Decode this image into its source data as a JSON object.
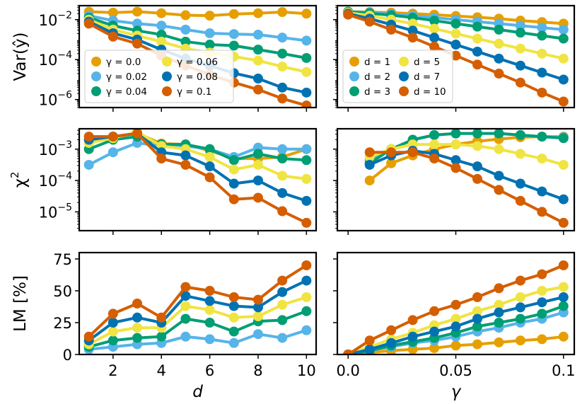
{
  "colors": {
    "c0": "#E69F00",
    "c1": "#56B4E9",
    "c2": "#009E73",
    "c3": "#F0E442",
    "c4": "#0072B2",
    "c5": "#D55E00"
  },
  "chart_data": [
    {
      "id": "var_d",
      "type": "line",
      "yscale": "log",
      "ylabel": "Var(ŷ)",
      "xlim": [
        0.6,
        10.4
      ],
      "ylim_log10": [
        -6.4,
        -1.3
      ],
      "y_ticks": [
        {
          "v": -2,
          "label": "10",
          "exp": "−2"
        },
        {
          "v": -4,
          "label": "10",
          "exp": "−4"
        },
        {
          "v": -6,
          "label": "10",
          "exp": "−6"
        }
      ],
      "x": [
        1,
        2,
        3,
        4,
        5,
        6,
        7,
        8,
        9,
        10
      ],
      "series": [
        {
          "name": "γ = 0.0",
          "values": [
            -1.6,
            -1.65,
            -1.6,
            -1.68,
            -1.78,
            -1.8,
            -1.72,
            -1.68,
            -1.62,
            -1.7
          ]
        },
        {
          "name": "γ = 0.02",
          "values": [
            -1.8,
            -2.05,
            -2.2,
            -2.3,
            -2.5,
            -2.68,
            -2.72,
            -2.75,
            -2.9,
            -3.05
          ]
        },
        {
          "name": "γ = 0.04",
          "values": [
            -1.9,
            -2.3,
            -2.55,
            -2.75,
            -3.1,
            -3.25,
            -3.3,
            -3.5,
            -3.7,
            -3.92
          ]
        },
        {
          "name": "γ = 0.06",
          "values": [
            -2.0,
            -2.5,
            -2.8,
            -3.1,
            -3.45,
            -3.65,
            -3.85,
            -4.05,
            -4.35,
            -4.62
          ]
        },
        {
          "name": "γ = 0.08",
          "values": [
            -2.1,
            -2.68,
            -3.0,
            -3.5,
            -3.95,
            -4.3,
            -4.68,
            -4.95,
            -5.4,
            -5.65
          ]
        },
        {
          "name": "γ = 0.1",
          "values": [
            -2.2,
            -2.85,
            -3.2,
            -3.8,
            -4.3,
            -4.75,
            -5.15,
            -5.5,
            -5.95,
            -6.3
          ]
        }
      ],
      "legend": {
        "placement": "lower-left",
        "columns": 2
      }
    },
    {
      "id": "var_g",
      "type": "line",
      "yscale": "log",
      "xlim": [
        -0.005,
        0.105
      ],
      "ylim_log10": [
        -6.4,
        -1.3
      ],
      "x": [
        0,
        0.01,
        0.02,
        0.03,
        0.04,
        0.05,
        0.06,
        0.07,
        0.08,
        0.09,
        0.1
      ],
      "series": [
        {
          "name": "d = 1",
          "values": [
            -1.6,
            -1.62,
            -1.65,
            -1.7,
            -1.75,
            -1.82,
            -1.88,
            -1.95,
            -2.05,
            -2.12,
            -2.2
          ]
        },
        {
          "name": "d = 2",
          "values": [
            -1.6,
            -1.65,
            -1.72,
            -1.8,
            -1.9,
            -2.0,
            -2.1,
            -2.2,
            -2.3,
            -2.4,
            -2.5
          ]
        },
        {
          "name": "d = 3",
          "values": [
            -1.6,
            -1.68,
            -1.78,
            -1.9,
            -2.05,
            -2.2,
            -2.35,
            -2.5,
            -2.65,
            -2.8,
            -2.95
          ]
        },
        {
          "name": "d = 5",
          "values": [
            -1.65,
            -1.8,
            -2.0,
            -2.2,
            -2.45,
            -2.7,
            -2.95,
            -3.2,
            -3.45,
            -3.7,
            -3.95
          ]
        },
        {
          "name": "d = 7",
          "values": [
            -1.7,
            -1.95,
            -2.25,
            -2.55,
            -2.9,
            -3.25,
            -3.6,
            -3.95,
            -4.3,
            -4.65,
            -5.0
          ]
        },
        {
          "name": "d = 10",
          "values": [
            -1.75,
            -2.1,
            -2.5,
            -2.9,
            -3.35,
            -3.8,
            -4.25,
            -4.7,
            -5.15,
            -5.65,
            -6.1
          ]
        }
      ],
      "legend": {
        "placement": "lower-left",
        "columns": 2
      }
    },
    {
      "id": "chi_d",
      "type": "line",
      "yscale": "log",
      "ylabel": "χ²",
      "xlim": [
        0.6,
        10.4
      ],
      "ylim_log10": [
        -5.6,
        -2.35
      ],
      "y_ticks": [
        {
          "v": -3,
          "label": "10",
          "exp": "−3"
        },
        {
          "v": -4,
          "label": "10",
          "exp": "−4"
        },
        {
          "v": -5,
          "label": "10",
          "exp": "−5"
        }
      ],
      "x": [
        1,
        2,
        3,
        4,
        5,
        6,
        7,
        8,
        9,
        10
      ],
      "series": [
        {
          "name": "γ = 0.0",
          "values": [
            -2.6,
            -2.6,
            -2.5,
            -2.82,
            -2.85,
            -3.05,
            -3.3,
            -3.3,
            -3.25,
            -3.0
          ]
        },
        {
          "name": "γ = 0.02",
          "values": [
            -3.5,
            -3.1,
            -2.8,
            -2.9,
            -2.9,
            -3.0,
            -3.25,
            -2.95,
            -3.0,
            -3.0
          ]
        },
        {
          "name": "γ = 0.04",
          "values": [
            -3.0,
            -2.7,
            -2.6,
            -2.85,
            -2.85,
            -3.0,
            -3.35,
            -3.15,
            -3.3,
            -3.35
          ]
        },
        {
          "name": "γ = 0.06",
          "values": [
            -2.8,
            -2.65,
            -2.45,
            -2.9,
            -3.0,
            -3.25,
            -3.65,
            -3.5,
            -3.85,
            -3.95
          ]
        },
        {
          "name": "γ = 0.08",
          "values": [
            -2.7,
            -2.6,
            -2.5,
            -3.1,
            -3.2,
            -3.55,
            -4.1,
            -4.0,
            -4.4,
            -4.65
          ]
        },
        {
          "name": "γ = 0.1",
          "values": [
            -2.6,
            -2.6,
            -2.5,
            -3.3,
            -3.5,
            -3.9,
            -4.6,
            -4.55,
            -4.98,
            -5.35
          ]
        }
      ]
    },
    {
      "id": "chi_g",
      "type": "line",
      "yscale": "log",
      "xlim": [
        -0.005,
        0.105
      ],
      "ylim_log10": [
        -5.6,
        -2.35
      ],
      "x": [
        0.01,
        0.02,
        0.03,
        0.04,
        0.05,
        0.06,
        0.07,
        0.08,
        0.09,
        0.1
      ],
      "series": [
        {
          "name": "d = 1",
          "values": [
            -4.0,
            -3.45,
            -3.2,
            -3.0,
            -2.85,
            -2.75,
            -2.68,
            -2.62,
            -2.6,
            -2.6
          ]
        },
        {
          "name": "d = 2",
          "values": [
            -3.35,
            -3.0,
            -2.7,
            -2.55,
            -2.5,
            -2.5,
            -2.5,
            -2.55,
            -2.6,
            -2.62
          ]
        },
        {
          "name": "d = 3",
          "values": [
            -3.45,
            -3.0,
            -2.7,
            -2.55,
            -2.5,
            -2.5,
            -2.5,
            -2.55,
            -2.6,
            -2.65
          ]
        },
        {
          "name": "d = 5",
          "values": [
            -3.25,
            -3.0,
            -2.85,
            -2.85,
            -2.85,
            -2.9,
            -3.0,
            -3.15,
            -3.3,
            -3.5
          ]
        },
        {
          "name": "d = 7",
          "values": [
            -3.5,
            -3.2,
            -3.05,
            -3.15,
            -3.35,
            -3.55,
            -3.85,
            -4.1,
            -4.35,
            -4.6
          ]
        },
        {
          "name": "d = 10",
          "values": [
            -3.1,
            -3.1,
            -3.1,
            -3.3,
            -3.6,
            -3.95,
            -4.3,
            -4.65,
            -5.0,
            -5.35
          ]
        }
      ]
    },
    {
      "id": "lm_d",
      "type": "line",
      "yscale": "linear",
      "ylabel": "LM [%]",
      "xlabel": "d",
      "xlim": [
        0.6,
        10.4
      ],
      "ylim": [
        0,
        80
      ],
      "y_ticks": [
        {
          "v": 0,
          "label": "0"
        },
        {
          "v": 25,
          "label": "25"
        },
        {
          "v": 50,
          "label": "50"
        },
        {
          "v": 75,
          "label": "75"
        }
      ],
      "x_ticks": [
        {
          "v": 2,
          "label": "2"
        },
        {
          "v": 4,
          "label": "4"
        },
        {
          "v": 6,
          "label": "6"
        },
        {
          "v": 8,
          "label": "8"
        },
        {
          "v": 10,
          "label": "10"
        }
      ],
      "x": [
        1,
        2,
        3,
        4,
        5,
        6,
        7,
        8,
        9,
        10
      ],
      "series": [
        {
          "name": "γ = 0.0",
          "values": [
            null,
            null,
            null,
            null,
            null,
            null,
            null,
            null,
            null,
            null
          ]
        },
        {
          "name": "γ = 0.02",
          "values": [
            4,
            6,
            8,
            9,
            14,
            12,
            9,
            16,
            13,
            19
          ]
        },
        {
          "name": "γ = 0.04",
          "values": [
            6,
            11,
            13,
            14,
            28,
            25,
            18,
            26,
            27,
            34
          ]
        },
        {
          "name": "γ = 0.06",
          "values": [
            8,
            18,
            21,
            21,
            38,
            35,
            29,
            30,
            39,
            45
          ]
        },
        {
          "name": "γ = 0.08",
          "values": [
            11,
            25,
            29,
            25,
            46,
            42,
            38,
            37,
            49,
            58
          ]
        },
        {
          "name": "γ = 0.1",
          "values": [
            14,
            32,
            40,
            29,
            53,
            50,
            45,
            43,
            58,
            70
          ]
        }
      ]
    },
    {
      "id": "lm_g",
      "type": "line",
      "yscale": "linear",
      "xlabel": "γ",
      "xlim": [
        -0.005,
        0.105
      ],
      "ylim": [
        0,
        80
      ],
      "x_ticks": [
        {
          "v": 0,
          "label": "0.0"
        },
        {
          "v": 0.05,
          "label": "0.05"
        },
        {
          "v": 0.1,
          "label": "0.1"
        }
      ],
      "x": [
        0,
        0.01,
        0.02,
        0.03,
        0.04,
        0.05,
        0.06,
        0.07,
        0.08,
        0.09,
        0.1
      ],
      "series": [
        {
          "name": "d = 1",
          "values": [
            0,
            1.5,
            3,
            4,
            5,
            7,
            8,
            9.5,
            11,
            12,
            14
          ]
        },
        {
          "name": "d = 2",
          "values": [
            0,
            3,
            6,
            9,
            11,
            14,
            18,
            21,
            25,
            28,
            33
          ]
        },
        {
          "name": "d = 3",
          "values": [
            0,
            3,
            7,
            10,
            13,
            17,
            22,
            25,
            28,
            32,
            38
          ]
        },
        {
          "name": "d = 5",
          "values": [
            0,
            6,
            12,
            17,
            23,
            28,
            34,
            39,
            45,
            50,
            53
          ]
        },
        {
          "name": "d = 7",
          "values": [
            0,
            4,
            9,
            14,
            18,
            22,
            28,
            33,
            37,
            41,
            45
          ]
        },
        {
          "name": "d = 10",
          "values": [
            0,
            11,
            19,
            27,
            34,
            39,
            45,
            52,
            58,
            63,
            70
          ]
        }
      ]
    }
  ]
}
